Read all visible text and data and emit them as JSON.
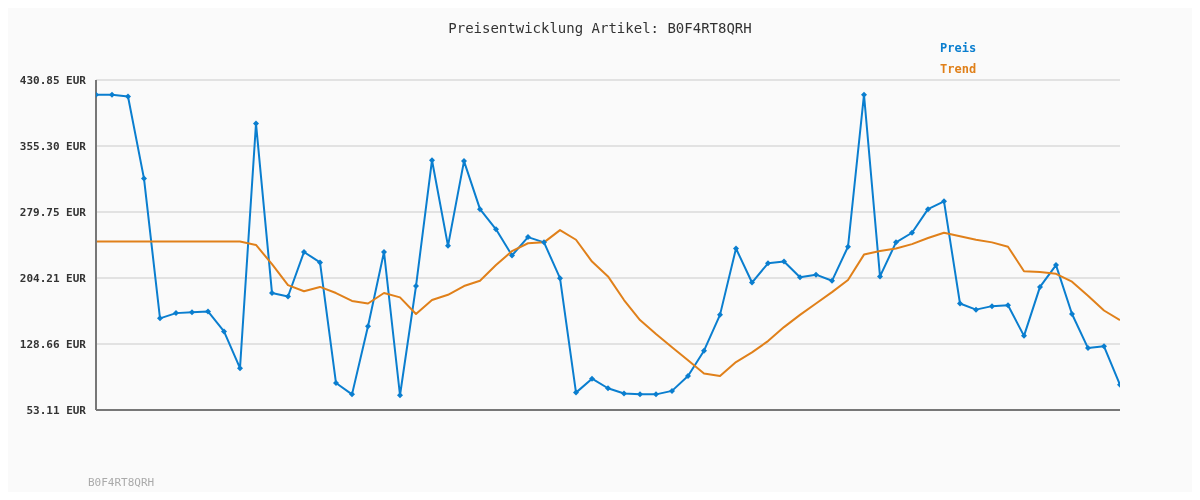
{
  "chart_data": {
    "type": "line",
    "title": "Preisentwicklung Artikel: B0F4RT8QRH",
    "categories": [
      null,
      null,
      null,
      null,
      null,
      null,
      null,
      null,
      null,
      null,
      null,
      null,
      null,
      null,
      null,
      null,
      null,
      null,
      null,
      null,
      null,
      null,
      null,
      null,
      null,
      null,
      null,
      null,
      null,
      null,
      null,
      null,
      null,
      null,
      null,
      null,
      null,
      null,
      null,
      null,
      null,
      null,
      null,
      null,
      null,
      null,
      null,
      null,
      null,
      null,
      null,
      null,
      null,
      null,
      null,
      null,
      null,
      null,
      null,
      null,
      null,
      null,
      null,
      null,
      null
    ],
    "series": [
      {
        "name": "Preis",
        "color": "#0a7ecf",
        "marker": "diamond",
        "values": [
          414,
          414,
          412,
          318,
          158,
          164,
          165,
          166,
          143,
          101,
          381,
          187,
          183,
          234,
          222,
          84,
          71,
          149,
          234,
          70,
          195,
          339,
          241,
          338,
          283,
          260,
          230,
          251,
          245,
          204,
          73,
          89,
          78,
          72,
          71,
          71,
          75,
          92,
          121,
          162,
          238,
          199,
          221,
          223,
          205,
          208,
          201,
          240,
          414,
          206,
          245,
          256,
          283,
          292,
          175,
          168,
          172,
          173,
          138,
          194,
          219,
          163,
          124,
          126,
          82
        ]
      },
      {
        "name": "Trend",
        "color": "#e0801a",
        "marker": "none",
        "values": [
          246,
          246,
          246,
          246,
          246,
          246,
          246,
          246,
          246,
          246,
          242,
          220,
          196,
          189,
          194,
          187,
          178,
          175,
          187,
          182,
          163,
          179,
          185,
          195,
          201,
          219,
          235,
          244,
          245,
          259,
          248,
          223,
          206,
          179,
          156,
          140,
          125,
          110,
          95,
          92,
          108,
          119,
          132,
          148,
          162,
          175,
          188,
          202,
          231,
          235,
          238,
          243,
          250,
          256,
          252,
          248,
          245,
          240,
          212,
          211,
          209,
          200,
          184,
          167,
          156
        ]
      }
    ],
    "ylim": [
      53.11,
      430.85
    ],
    "yticks": [
      {
        "value": 53.11,
        "label": "53.11 EUR"
      },
      {
        "value": 128.66,
        "label": "128.66 EUR"
      },
      {
        "value": 204.21,
        "label": "204.21 EUR"
      },
      {
        "value": 279.75,
        "label": "279.75 EUR"
      },
      {
        "value": 355.3,
        "label": "355.30 EUR"
      },
      {
        "value": 430.85,
        "label": "430.85 EUR"
      }
    ],
    "grid": "y",
    "legend": "top right",
    "line_style": "solid",
    "annotations": [
      "B0F4RT8QRH"
    ]
  }
}
